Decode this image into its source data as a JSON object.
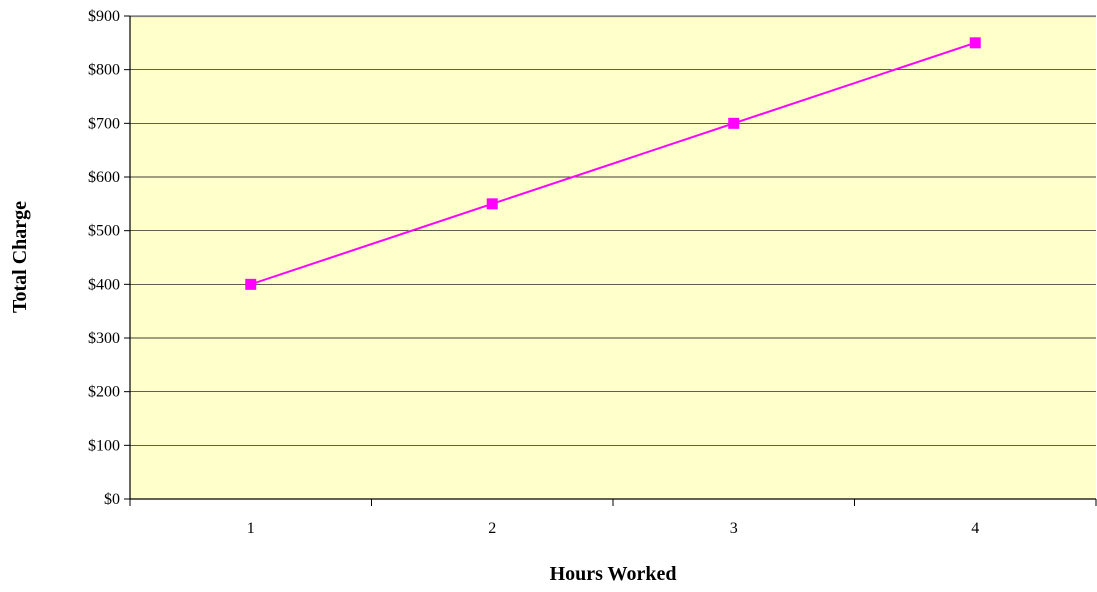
{
  "chart_data": {
    "type": "line",
    "title": "",
    "xlabel": "Hours Worked",
    "ylabel": "Total Charge",
    "categories": [
      "1",
      "2",
      "3",
      "4"
    ],
    "series": [
      {
        "values": [
          400,
          550,
          700,
          850
        ],
        "color": "#ff00ff",
        "marker": "square"
      }
    ],
    "ylim": [
      0,
      900
    ],
    "yticks": [
      0,
      100,
      200,
      300,
      400,
      500,
      600,
      700,
      800,
      900
    ],
    "ytick_labels": [
      "$0",
      "$100",
      "$200",
      "$300",
      "$400",
      "$500",
      "$600",
      "$700",
      "$800",
      "$900"
    ],
    "grid": "horizontal",
    "legend": "none",
    "plot_background": "#ffffcc",
    "gridline_color": "#000000"
  }
}
